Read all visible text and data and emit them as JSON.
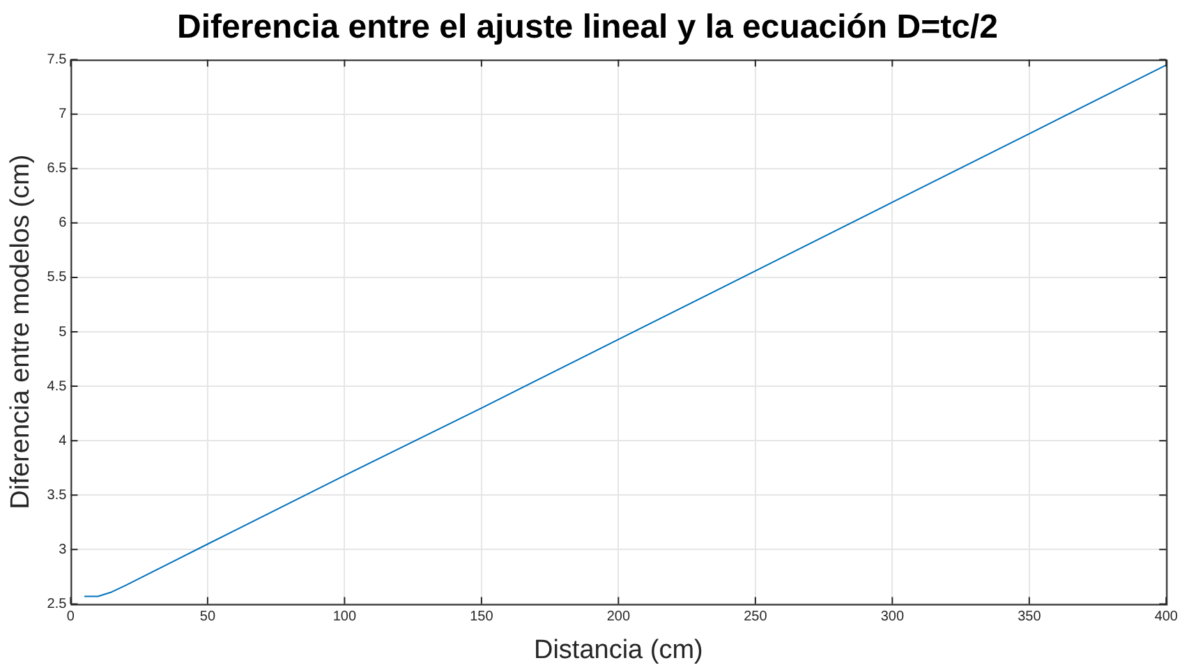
{
  "chart_data": {
    "type": "line",
    "title": "Diferencia entre el ajuste lineal y la ecuación D=tc/2",
    "xlabel": "Distancia (cm)",
    "ylabel": "Diferencia entre modelos (cm)",
    "x": [
      5,
      10,
      15,
      20,
      50,
      100,
      150,
      200,
      250,
      300,
      350,
      400
    ],
    "series": [
      {
        "color": "#0072bd",
        "values": [
          2.57,
          2.57,
          2.61,
          2.67,
          3.05,
          3.68,
          4.3,
          4.93,
          5.56,
          6.19,
          6.82,
          7.45
        ]
      }
    ],
    "xlim": [
      0,
      400
    ],
    "xticks": [
      0,
      50,
      100,
      150,
      200,
      250,
      300,
      350,
      400
    ],
    "ylim": [
      2.5,
      7.5
    ],
    "yticks": [
      2.5,
      3,
      3.5,
      4,
      4.5,
      5,
      5.5,
      6,
      6.5,
      7,
      7.5
    ],
    "grid": true,
    "legend": false,
    "marker": "none",
    "line_style": "solid"
  }
}
